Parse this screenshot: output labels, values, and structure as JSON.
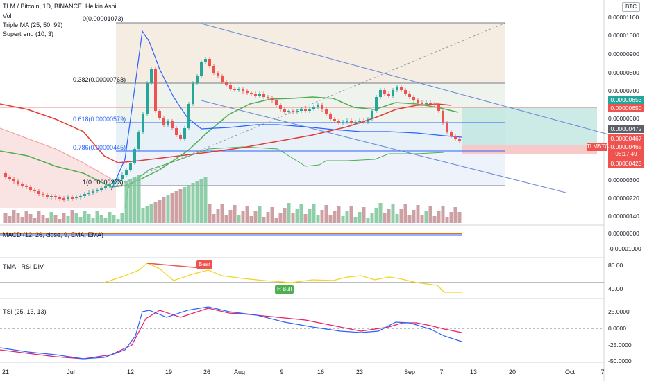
{
  "header": {
    "symbol_line": "TLM / Bitcoin, 1D, BINANCE, Heikin Ashi",
    "indicators": [
      "Vol",
      "Triple MA (25, 50, 99)",
      "Supertrend (10, 3)"
    ]
  },
  "currency_badge": "BTC",
  "fib_levels": [
    {
      "label": "0(0.00001073)",
      "color": "#131722"
    },
    {
      "label": "0.382(0.00000768)",
      "color": "#131722"
    },
    {
      "label": "0.618(0.00000579)",
      "color": "#2962ff"
    },
    {
      "label": "0.786(0.00000445)",
      "color": "#2962ff"
    },
    {
      "label": "1(0.00000273)",
      "color": "#131722"
    }
  ],
  "price_axis": [
    "0.00001100",
    "0.00001000",
    "0.00000900",
    "0.00000800",
    "0.00000700",
    "0.00000600",
    "0.00000380",
    "0.00000300",
    "0.00000220",
    "0.00000140"
  ],
  "price_tags": [
    {
      "text": "0.00000653",
      "bg": "#26a69a"
    },
    {
      "text": "0.00000650",
      "bg": "#ef5350"
    },
    {
      "text": "0.00000472",
      "bg": "#5d606b"
    },
    {
      "text": "0.00000467",
      "bg": "#ef5350"
    },
    {
      "text": "0.00000465",
      "bg": "#ef5350"
    },
    {
      "text": "08:17:49",
      "bg": "#ef5350"
    },
    {
      "text": "0.00000423",
      "bg": "#ef5350"
    }
  ],
  "ticker_tag": "TLMBTC",
  "panes": {
    "macd": {
      "title": "MACD (12, 26, close, 9, EMA, EMA)",
      "axis": [
        "0.00000000",
        "-0.00001000"
      ]
    },
    "rsi": {
      "title": "TMA - RSI DIV",
      "axis": [
        "80.00",
        "40.00"
      ],
      "bear": "Bear",
      "bull": "H Bull"
    },
    "tsi": {
      "title": "TSI (25, 13, 13)",
      "axis": [
        "25.0000",
        "0.0000",
        "-25.0000",
        "-50.0000"
      ]
    }
  },
  "time_axis": [
    "21",
    "Jul",
    "12",
    "19",
    "26",
    "Aug",
    "9",
    "16",
    "23",
    "Sep",
    "7",
    "13",
    "20",
    "Oct",
    "7"
  ],
  "colors": {
    "up": "#26a69a",
    "down": "#ef5350",
    "ma25": "#2962ff",
    "ma50": "#4caf50",
    "ma99": "#e53935",
    "trend": "#6b8bd8"
  }
}
